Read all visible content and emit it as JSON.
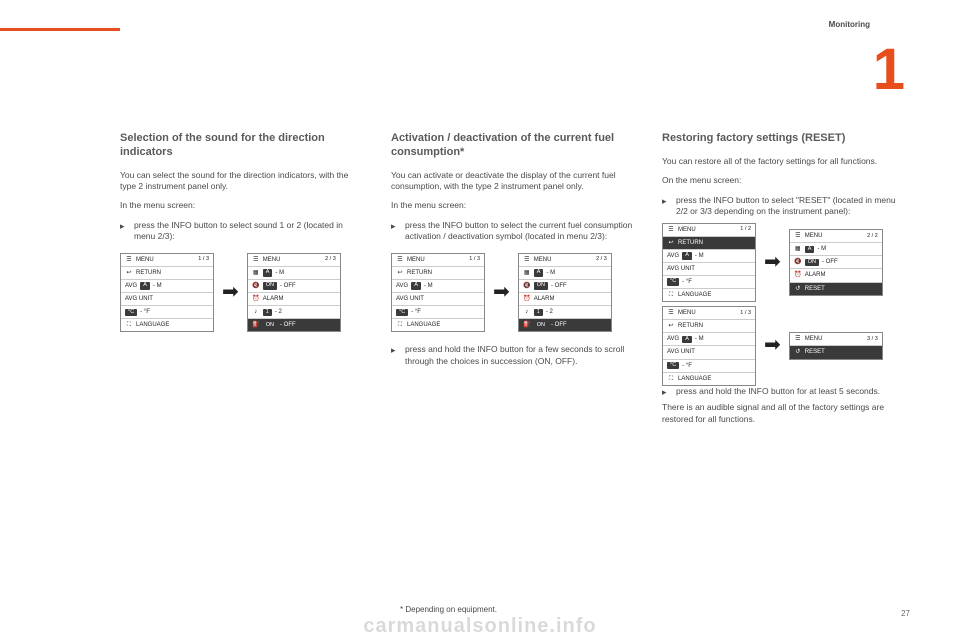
{
  "header": {
    "section_label": "Monitoring",
    "chapter_number": "1",
    "accent_color": "#e84e1b"
  },
  "columns": [
    {
      "title": "Selection of the sound for the direction indicators",
      "intro": "You can select the sound for the direction indicators, with the type 2 instrument panel only.",
      "labels": {
        "step_lead": "In the menu screen:",
        "step_item": "press the INFO button to select sound 1 or 2 (located in menu 2/3):"
      },
      "panels": [
        {
          "page": "1 / 3",
          "rows": [
            {
              "icon": "☰",
              "text": "MENU",
              "right": "1 / 3"
            },
            {
              "icon": "↩",
              "text": "RETURN"
            },
            {
              "icon": "",
              "text": "AVG",
              "pill": "A",
              "tail": "- M"
            },
            {
              "icon": "",
              "text": "AVG UNIT"
            },
            {
              "icon": "",
              "pill": "°C",
              "tail": "- °F"
            },
            {
              "icon": "⛶",
              "text": "LANGUAGE"
            }
          ]
        },
        {
          "page": "2 / 3",
          "rows": [
            {
              "icon": "☰",
              "text": "MENU",
              "right": "2 / 3"
            },
            {
              "icon": "▦",
              "pill": "A",
              "tail": "- M"
            },
            {
              "icon": "🔇",
              "pill": "ON",
              "tail": "- OFF"
            },
            {
              "icon": "⏰",
              "text": "ALARM"
            },
            {
              "icon": "♪",
              "pill": "1",
              "tail": "- 2"
            },
            {
              "icon": "⛽",
              "pill": "ON",
              "tail": "- OFF",
              "hl": true
            }
          ]
        }
      ]
    },
    {
      "title": "Activation / deactivation of the current fuel consumption*",
      "intro": "You can activate or deactivate the display of the current fuel consumption, with the type 2 instrument panel only.",
      "labels": {
        "step_lead": "In the menu screen:",
        "step_item": "press the INFO button to select the current fuel consumption activation / deactivation symbol (located in menu 2/3):",
        "post_item": "press and hold the INFO button for a few seconds to scroll through the choices in succession (ON, OFF)."
      },
      "panels": [
        {
          "page": "1 / 3",
          "rows": [
            {
              "icon": "☰",
              "text": "MENU",
              "right": "1 / 3"
            },
            {
              "icon": "↩",
              "text": "RETURN"
            },
            {
              "icon": "",
              "text": "AVG",
              "pill": "A",
              "tail": "- M"
            },
            {
              "icon": "",
              "text": "AVG UNIT"
            },
            {
              "icon": "",
              "pill": "°C",
              "tail": "- °F"
            },
            {
              "icon": "⛶",
              "text": "LANGUAGE"
            }
          ]
        },
        {
          "page": "2 / 3",
          "rows": [
            {
              "icon": "☰",
              "text": "MENU",
              "right": "2 / 3"
            },
            {
              "icon": "▦",
              "pill": "A",
              "tail": "- M"
            },
            {
              "icon": "🔇",
              "pill": "ON",
              "tail": "- OFF"
            },
            {
              "icon": "⏰",
              "text": "ALARM"
            },
            {
              "icon": "♪",
              "pill": "1",
              "tail": "- 2"
            },
            {
              "icon": "⛽",
              "pill": "ON",
              "tail": "- OFF",
              "hl": true
            }
          ]
        }
      ]
    },
    {
      "title": "Restoring factory settings (RESET)",
      "intro": "You can restore all of the factory settings for all functions.",
      "labels": {
        "step_lead": "On the menu screen:",
        "step_item": "press the INFO button to select \"RESET\" (located in menu 2/2 or 3/3 depending on the instrument panel):",
        "post_item": "press and hold the INFO button for at least 5 seconds.",
        "outro": "There is an audible signal and all of the factory settings are restored for all functions."
      },
      "panel_pairs": [
        [
          {
            "rows": [
              {
                "icon": "☰",
                "text": "MENU",
                "right": "1 / 2"
              },
              {
                "icon": "↩",
                "text": "RETURN",
                "hl": true
              },
              {
                "icon": "",
                "text": "AVG",
                "pill": "A",
                "tail": "- M"
              },
              {
                "icon": "",
                "text": "AVG UNIT"
              },
              {
                "icon": "",
                "pill": "°C",
                "tail": "- °F"
              },
              {
                "icon": "⛶",
                "text": "LANGUAGE"
              }
            ]
          },
          {
            "rows": [
              {
                "icon": "☰",
                "text": "MENU",
                "right": "2 / 2"
              },
              {
                "icon": "▦",
                "pill": "A",
                "tail": "- M"
              },
              {
                "icon": "🔇",
                "pill": "ON",
                "tail": "- OFF"
              },
              {
                "icon": "⏰",
                "text": "ALARM"
              },
              {
                "icon": "↺",
                "text": "RESET",
                "hl": true
              }
            ]
          }
        ],
        [
          {
            "rows": [
              {
                "icon": "☰",
                "text": "MENU",
                "right": "1 / 3"
              },
              {
                "icon": "↩",
                "text": "RETURN"
              },
              {
                "icon": "",
                "text": "AVG",
                "pill": "A",
                "tail": "- M"
              },
              {
                "icon": "",
                "text": "AVG UNIT"
              },
              {
                "icon": "",
                "pill": "°C",
                "tail": "- °F"
              },
              {
                "icon": "⛶",
                "text": "LANGUAGE"
              }
            ]
          },
          {
            "rows": [
              {
                "icon": "☰",
                "text": "MENU",
                "right": "3 / 3"
              },
              {
                "icon": "↺",
                "text": "RESET",
                "hl": true
              }
            ]
          }
        ]
      ]
    }
  ],
  "footnote": "* Depending on equipment.",
  "page_number": "27",
  "watermark": "carmanualsonline.info"
}
